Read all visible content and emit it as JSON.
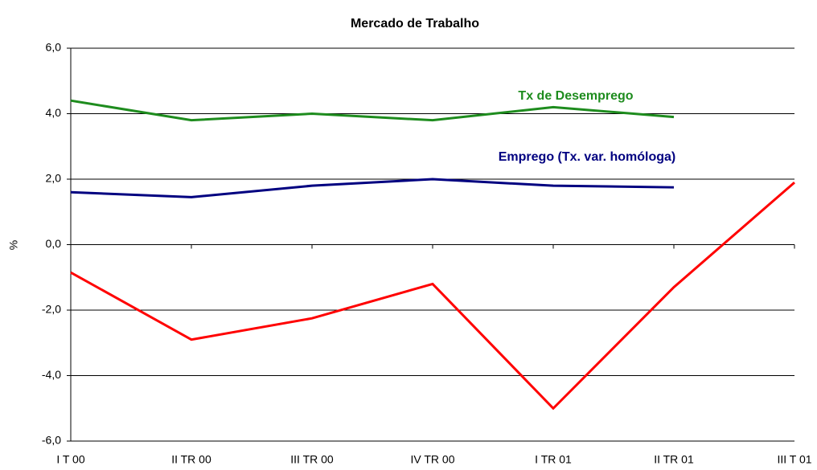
{
  "chart_data": {
    "type": "line",
    "title": "Mercado de Trabalho",
    "y_label": "%",
    "categories": [
      "I T 00",
      "II TR 00",
      "III TR 00",
      "IV TR 00",
      "I TR 01",
      "II TR 01",
      "III T 01"
    ],
    "series": [
      {
        "name": "Tx de Desemprego",
        "color": "#1e8c1e",
        "values": [
          4.4,
          3.8,
          4.0,
          3.8,
          4.2,
          3.9,
          null
        ]
      },
      {
        "name": "Emprego (Tx. var. homóloga)",
        "color": "#000080",
        "values": [
          1.6,
          1.45,
          1.8,
          2.0,
          1.8,
          1.75,
          null
        ]
      },
      {
        "color": "#ff0000",
        "values": [
          -0.85,
          -2.9,
          -2.25,
          -1.2,
          -5.0,
          -1.3,
          1.9
        ]
      }
    ],
    "ylim": [
      -6,
      6
    ],
    "yticks": [
      {
        "value": -6,
        "label": "-6,0"
      },
      {
        "value": -4,
        "label": "-4,0"
      },
      {
        "value": -2,
        "label": "-2,0"
      },
      {
        "value": 0,
        "label": "0,0"
      },
      {
        "value": 2,
        "label": "2,0"
      },
      {
        "value": 4,
        "label": "4,0"
      },
      {
        "value": 6,
        "label": "6,0"
      }
    ],
    "grid": true
  }
}
